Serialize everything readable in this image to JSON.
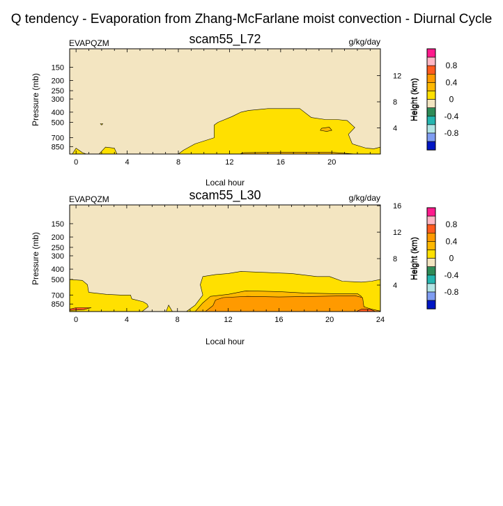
{
  "figure_title": "Q tendency - Evaporation from Zhang-McFarlane moist convection - Diurnal Cycle",
  "colors": {
    "background_fill": "#f3e5c1",
    "contour_line": "#000000",
    "levels": [
      "#9b6cd9",
      "#0016c4",
      "#7f9df2",
      "#b2e5e5",
      "#25b6b0",
      "#2e8b57",
      "#f3e5c1",
      "#ffe000",
      "#ffb800",
      "#ff9a00",
      "#ff5a1e",
      "#ffb7c5",
      "#ff1a8c"
    ]
  },
  "colorbar": {
    "label": "Height (km)",
    "tick_labels": [
      "0.8",
      "0.4",
      "0",
      "-0.4",
      "-0.8"
    ]
  },
  "chart_data": [
    {
      "type": "contour",
      "variable": "EVAPQZM",
      "title": "scam55_L72",
      "units": "g/kg/day",
      "xlabel": "Local hour",
      "ylabel": "Pressure (mb)",
      "right_label": "Height (km)",
      "xlim": [
        -0.5,
        23.8
      ],
      "x_ticks": [
        0,
        4,
        8,
        12,
        16,
        20
      ],
      "x_tick_labels": [
        "0",
        "4",
        "8",
        "12",
        "16",
        "20"
      ],
      "p_ticks": [
        150,
        200,
        250,
        300,
        400,
        500,
        700,
        850
      ],
      "p_tick_labels": [
        "150",
        "200",
        "250",
        "300",
        "400",
        "500",
        "700",
        "850"
      ],
      "height_ticks": [
        4,
        8,
        12
      ],
      "height_tick_labels": [
        "4",
        "8",
        "12"
      ],
      "plim": [
        1000,
        100
      ],
      "levels": [
        -1.0,
        -0.8,
        -0.6,
        -0.4,
        -0.2,
        0,
        0.2,
        0.4,
        0.6,
        0.8,
        1.0
      ],
      "regions": [
        {
          "level": 0.2,
          "points": [
            [
              8.0,
              1000
            ],
            [
              8.4,
              920
            ],
            [
              9.3,
              800
            ],
            [
              10.8,
              700
            ],
            [
              10.8,
              530
            ],
            [
              11.1,
              500
            ],
            [
              12.2,
              440
            ],
            [
              12.9,
              400
            ],
            [
              13.5,
              385
            ],
            [
              15.0,
              370
            ],
            [
              17.5,
              370
            ],
            [
              18.4,
              450
            ],
            [
              19.5,
              470
            ],
            [
              20.4,
              470
            ],
            [
              21.2,
              480
            ],
            [
              21.8,
              560
            ],
            [
              21.3,
              650
            ],
            [
              21.6,
              800
            ],
            [
              22.7,
              880
            ],
            [
              23.3,
              890
            ],
            [
              23.8,
              860
            ],
            [
              23.8,
              1000
            ]
          ]
        },
        {
          "level": 0.4,
          "points": [
            [
              12.8,
              1000
            ],
            [
              13.1,
              972
            ],
            [
              16.2,
              960
            ],
            [
              19.8,
              960
            ],
            [
              21.8,
              1000
            ]
          ]
        },
        {
          "level": 0.4,
          "points": [
            [
              19.2,
              570
            ],
            [
              19.8,
              555
            ],
            [
              20.0,
              595
            ],
            [
              19.6,
              610
            ],
            [
              19.1,
              595
            ]
          ]
        },
        {
          "level": 0.2,
          "points": [
            [
              -0.3,
              1000
            ],
            [
              0.0,
              880
            ],
            [
              0.5,
              970
            ],
            [
              0.8,
              1000
            ]
          ]
        },
        {
          "level": 0.2,
          "points": [
            [
              1.8,
              1000
            ],
            [
              2.3,
              860
            ],
            [
              3.0,
              880
            ],
            [
              3.2,
              1000
            ]
          ]
        },
        {
          "level": 0.2,
          "points": [
            [
              1.9,
              515
            ],
            [
              2.1,
              515
            ],
            [
              2.0,
              530
            ]
          ]
        }
      ]
    },
    {
      "type": "contour",
      "variable": "EVAPQZM",
      "title": "scam55_L30",
      "units": "g/kg/day",
      "xlabel": "Local hour",
      "ylabel": "Pressure (mb)",
      "right_label": "Height (km)",
      "xlim": [
        -0.5,
        24
      ],
      "x_ticks": [
        0,
        4,
        8,
        12,
        16,
        20,
        24
      ],
      "x_tick_labels": [
        "0",
        "4",
        "8",
        "12",
        "16",
        "20",
        "24"
      ],
      "p_ticks": [
        150,
        200,
        250,
        300,
        400,
        500,
        700,
        850
      ],
      "p_tick_labels": [
        "150",
        "200",
        "250",
        "300",
        "400",
        "500",
        "700",
        "850"
      ],
      "height_ticks": [
        4,
        8,
        12,
        16
      ],
      "height_tick_labels": [
        "4",
        "8",
        "12",
        "16"
      ],
      "plim": [
        1000,
        100
      ],
      "levels": [
        -1.0,
        -0.8,
        -0.6,
        -0.4,
        -0.2,
        0,
        0.2,
        0.4,
        0.6,
        0.8,
        1.0
      ],
      "regions": [
        {
          "level": 0.2,
          "points": [
            [
              -0.5,
              1000
            ],
            [
              -0.5,
              500
            ],
            [
              0.5,
              510
            ],
            [
              0.9,
              560
            ],
            [
              1.0,
              660
            ],
            [
              2.4,
              690
            ],
            [
              3.5,
              700
            ],
            [
              4.3,
              700
            ],
            [
              4.4,
              760
            ],
            [
              5.3,
              810
            ],
            [
              5.6,
              850
            ],
            [
              5.7,
              900
            ],
            [
              5.2,
              1000
            ]
          ]
        },
        {
          "level": 0.2,
          "points": [
            [
              7.1,
              1000
            ],
            [
              7.3,
              870
            ],
            [
              7.6,
              1000
            ]
          ]
        },
        {
          "level": 0.2,
          "points": [
            [
              8.7,
              1000
            ],
            [
              9.4,
              870
            ],
            [
              10.0,
              700
            ],
            [
              9.8,
              560
            ],
            [
              10.0,
              470
            ],
            [
              11.0,
              450
            ],
            [
              12.0,
              440
            ],
            [
              13.0,
              420
            ],
            [
              15.0,
              430
            ],
            [
              17.0,
              440
            ],
            [
              19.0,
              470
            ],
            [
              20.0,
              470
            ],
            [
              21.0,
              520
            ],
            [
              22.5,
              530
            ],
            [
              23.3,
              520
            ],
            [
              24.0,
              500
            ],
            [
              24.0,
              1000
            ]
          ]
        },
        {
          "level": 0.4,
          "points": [
            [
              9.4,
              1000
            ],
            [
              10.0,
              830
            ],
            [
              10.6,
              720
            ],
            [
              12.0,
              690
            ],
            [
              13.4,
              640
            ],
            [
              16.0,
              650
            ],
            [
              18.0,
              670
            ],
            [
              20.5,
              680
            ],
            [
              22.2,
              680
            ],
            [
              22.5,
              720
            ],
            [
              22.6,
              880
            ],
            [
              23.1,
              960
            ],
            [
              24.0,
              1000
            ]
          ]
        },
        {
          "level": 0.6,
          "points": [
            [
              10.2,
              1000
            ],
            [
              10.8,
              880
            ],
            [
              11.0,
              780
            ],
            [
              11.6,
              740
            ],
            [
              13.5,
              720
            ],
            [
              16.0,
              730
            ],
            [
              19.0,
              720
            ],
            [
              22.0,
              710
            ],
            [
              22.6,
              740
            ],
            [
              22.7,
              900
            ],
            [
              23.3,
              950
            ],
            [
              24.0,
              990
            ],
            [
              24.0,
              1000
            ]
          ]
        },
        {
          "level": 0.8,
          "points": [
            [
              22.1,
              1000
            ],
            [
              22.5,
              950
            ],
            [
              23.2,
              950
            ],
            [
              23.6,
              1000
            ]
          ]
        },
        {
          "level": 0.8,
          "points": [
            [
              -0.5,
              950
            ],
            [
              0.0,
              920
            ],
            [
              1.2,
              920
            ],
            [
              0.6,
              960
            ],
            [
              -0.5,
              975
            ]
          ]
        }
      ]
    }
  ]
}
